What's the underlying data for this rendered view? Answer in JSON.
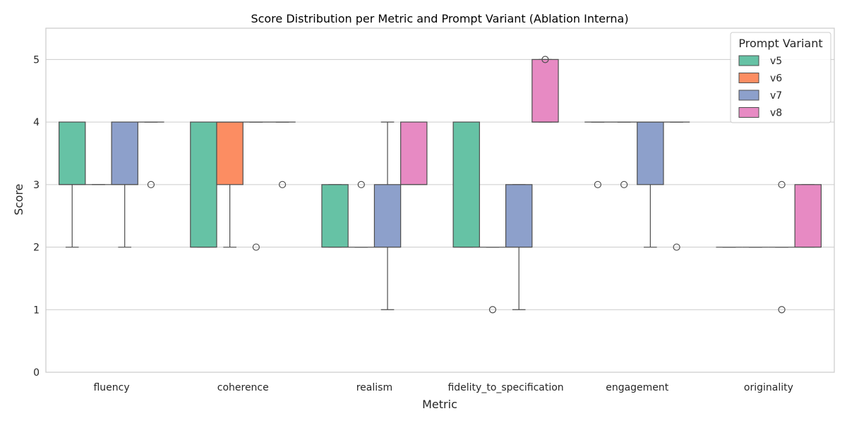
{
  "chart_data": {
    "type": "box",
    "title": "Score Distribution per Metric and Prompt Variant (Ablation Interna)",
    "xlabel": "Metric",
    "ylabel": "Score",
    "ylim": [
      0,
      5.5
    ],
    "yticks": [
      0,
      1,
      2,
      3,
      4,
      5
    ],
    "grid": "horizontal",
    "legend": {
      "title": "Prompt Variant",
      "placement": "top-right"
    },
    "categories": [
      "fluency",
      "coherence",
      "realism",
      "fidelity_to_specification",
      "engagement",
      "originality"
    ],
    "series": [
      {
        "name": "v5",
        "color": "#66c2a5",
        "boxes": [
          {
            "whisker_low": 2,
            "q1": 3,
            "median": 3,
            "q3": 4,
            "whisker_high": 4,
            "outliers": []
          },
          {
            "whisker_low": 2,
            "q1": 2,
            "median": 2,
            "q3": 4,
            "whisker_high": 4,
            "outliers": []
          },
          {
            "whisker_low": 2,
            "q1": 2,
            "median": 2,
            "q3": 3,
            "whisker_high": 3,
            "outliers": []
          },
          {
            "whisker_low": 2,
            "q1": 2,
            "median": 2,
            "q3": 4,
            "whisker_high": 4,
            "outliers": []
          },
          {
            "whisker_low": 4,
            "q1": 4,
            "median": 4,
            "q3": 4,
            "whisker_high": 4,
            "outliers": [
              3
            ]
          },
          {
            "whisker_low": 2,
            "q1": 2,
            "median": 2,
            "q3": 2,
            "whisker_high": 2,
            "outliers": []
          }
        ]
      },
      {
        "name": "v6",
        "color": "#fc8d62",
        "boxes": [
          {
            "whisker_low": 3,
            "q1": 3,
            "median": 3,
            "q3": 3,
            "whisker_high": 3,
            "outliers": []
          },
          {
            "whisker_low": 2,
            "q1": 3,
            "median": 4,
            "q3": 4,
            "whisker_high": 4,
            "outliers": []
          },
          {
            "whisker_low": 2,
            "q1": 2,
            "median": 2,
            "q3": 2,
            "whisker_high": 2,
            "outliers": [
              3
            ]
          },
          {
            "whisker_low": 2,
            "q1": 2,
            "median": 2,
            "q3": 2,
            "whisker_high": 2,
            "outliers": [
              1
            ]
          },
          {
            "whisker_low": 4,
            "q1": 4,
            "median": 4,
            "q3": 4,
            "whisker_high": 4,
            "outliers": [
              3
            ]
          },
          {
            "whisker_low": 2,
            "q1": 2,
            "median": 2,
            "q3": 2,
            "whisker_high": 2,
            "outliers": []
          }
        ]
      },
      {
        "name": "v7",
        "color": "#8da0cb",
        "boxes": [
          {
            "whisker_low": 2,
            "q1": 3,
            "median": 3,
            "q3": 4,
            "whisker_high": 4,
            "outliers": []
          },
          {
            "whisker_low": 4,
            "q1": 4,
            "median": 4,
            "q3": 4,
            "whisker_high": 4,
            "outliers": [
              2
            ]
          },
          {
            "whisker_low": 1,
            "q1": 2,
            "median": 2,
            "q3": 3,
            "whisker_high": 4,
            "outliers": []
          },
          {
            "whisker_low": 1,
            "q1": 2,
            "median": 2,
            "q3": 3,
            "whisker_high": 3,
            "outliers": []
          },
          {
            "whisker_low": 2,
            "q1": 3,
            "median": 4,
            "q3": 4,
            "whisker_high": 4,
            "outliers": []
          },
          {
            "whisker_low": 2,
            "q1": 2,
            "median": 2,
            "q3": 2,
            "whisker_high": 2,
            "outliers": [
              1,
              3
            ]
          }
        ]
      },
      {
        "name": "v8",
        "color": "#e78ac3",
        "boxes": [
          {
            "whisker_low": 4,
            "q1": 4,
            "median": 4,
            "q3": 4,
            "whisker_high": 4,
            "outliers": [
              3
            ]
          },
          {
            "whisker_low": 4,
            "q1": 4,
            "median": 4,
            "q3": 4,
            "whisker_high": 4,
            "outliers": [
              3
            ]
          },
          {
            "whisker_low": 3,
            "q1": 3,
            "median": 3,
            "q3": 4,
            "whisker_high": 4,
            "outliers": []
          },
          {
            "whisker_low": 4,
            "q1": 4,
            "median": 4,
            "q3": 5,
            "whisker_high": 5,
            "outliers": [
              5
            ]
          },
          {
            "whisker_low": 4,
            "q1": 4,
            "median": 4,
            "q3": 4,
            "whisker_high": 4,
            "outliers": [
              2
            ]
          },
          {
            "whisker_low": 2,
            "q1": 2,
            "median": 2,
            "q3": 3,
            "whisker_high": 3,
            "outliers": []
          }
        ]
      }
    ]
  }
}
